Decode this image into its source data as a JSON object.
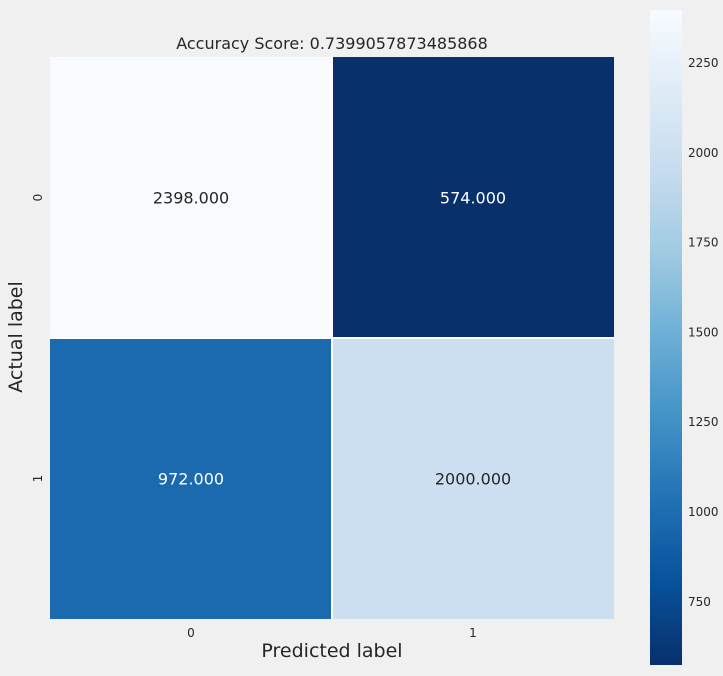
{
  "chart_data": {
    "type": "heatmap",
    "title": "Accuracy Score: 0.7399057873485868",
    "xlabel": "Predicted label",
    "ylabel": "Actual label",
    "x_ticks": [
      "0",
      "1"
    ],
    "y_ticks": [
      "0",
      "1"
    ],
    "values": [
      [
        2398.0,
        574.0
      ],
      [
        972.0,
        2000.0
      ]
    ],
    "cell_labels": [
      [
        "2398.000",
        "574.000"
      ],
      [
        "972.000",
        "2000.000"
      ]
    ],
    "colormap": "Blues",
    "colorbar": {
      "min": 574.0,
      "max": 2398.0,
      "ticks": [
        750,
        1000,
        1250,
        1500,
        1750,
        2000,
        2250
      ],
      "tick_labels": [
        "750",
        "1000",
        "1250",
        "1500",
        "1750",
        "2000",
        "2250"
      ]
    },
    "colors": {
      "background": "#f0f0f0",
      "gridline": "#ffffff",
      "text_dark": "#262626",
      "text_light": "#ffffff"
    }
  }
}
